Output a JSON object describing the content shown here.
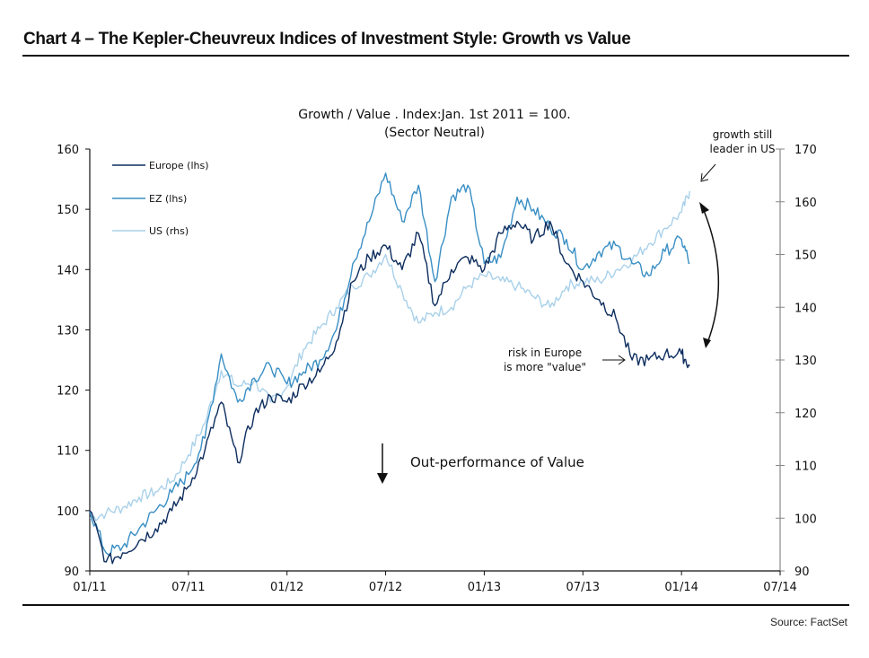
{
  "header": {
    "title": "Chart 4 – The Kepler-Cheuvreux Indices of Investment Style: Growth vs Value"
  },
  "footer": {
    "source": "Source: FactSet"
  },
  "chart_data": {
    "type": "line",
    "title": "Growth / Value . Index:Jan. 1st 2011 = 100.",
    "subtitle": "(Sector Neutral)",
    "xlabel": "",
    "ylabel": "",
    "x_ticks": [
      "01/11",
      "07/11",
      "01/12",
      "07/12",
      "01/13",
      "07/13",
      "01/14",
      "07/14"
    ],
    "x_range_months": [
      0,
      42
    ],
    "y_left": {
      "range": [
        90,
        160
      ],
      "ticks": [
        90,
        100,
        110,
        120,
        130,
        140,
        150,
        160
      ]
    },
    "y_right": {
      "range": [
        90,
        170
      ],
      "ticks": [
        90,
        100,
        110,
        120,
        130,
        140,
        150,
        160,
        170
      ]
    },
    "grid": false,
    "legend_position": "top-left",
    "x_months": [
      0,
      1,
      2,
      3,
      4,
      5,
      6,
      7,
      8,
      9,
      10,
      11,
      12,
      13,
      14,
      15,
      16,
      17,
      18,
      19,
      20,
      21,
      22,
      23,
      24,
      25,
      26,
      27,
      28,
      29,
      30,
      31,
      32,
      33,
      34,
      35,
      36,
      36.5
    ],
    "series": [
      {
        "name": "Europe (lhs)",
        "axis": "left",
        "color": "#0d2d5e",
        "values": [
          100,
          91.5,
          93,
          95,
          97,
          100,
          104,
          110,
          118,
          108,
          116,
          119,
          118,
          121,
          123,
          128,
          138,
          142,
          144,
          140,
          146,
          134,
          140,
          142,
          140,
          146,
          148,
          145,
          148,
          141,
          138,
          135,
          132,
          125,
          125,
          126,
          126,
          124
        ]
      },
      {
        "name": "EZ (lhs)",
        "axis": "left",
        "color": "#3a8fc4",
        "values": [
          100,
          93,
          94,
          97,
          100,
          103,
          106,
          112,
          126,
          118,
          122,
          124,
          121,
          123,
          125,
          130,
          141,
          148,
          156,
          148,
          154,
          138,
          152,
          154,
          141,
          142,
          152,
          150,
          147,
          145,
          140,
          143,
          144,
          141,
          139,
          143,
          145,
          141
        ]
      },
      {
        "name": "US (rhs)",
        "axis": "right",
        "color": "#a9d1ea",
        "values": [
          100,
          101,
          102,
          104,
          105,
          107,
          112,
          118,
          128,
          125,
          126,
          122,
          125,
          132,
          136,
          140,
          144,
          146,
          150,
          143,
          137,
          139,
          140,
          144,
          146,
          145,
          144,
          142,
          140,
          144,
          145,
          145,
          147,
          149,
          152,
          155,
          158,
          162
        ]
      }
    ],
    "annotations": [
      {
        "id": "growth-us",
        "lines": [
          "growth still",
          "leader in US"
        ]
      },
      {
        "id": "risk-europe",
        "lines": [
          "risk in Europe",
          "is more \"value\""
        ]
      },
      {
        "id": "value-outperf",
        "lines": [
          "Out-performance of Value"
        ]
      }
    ]
  }
}
